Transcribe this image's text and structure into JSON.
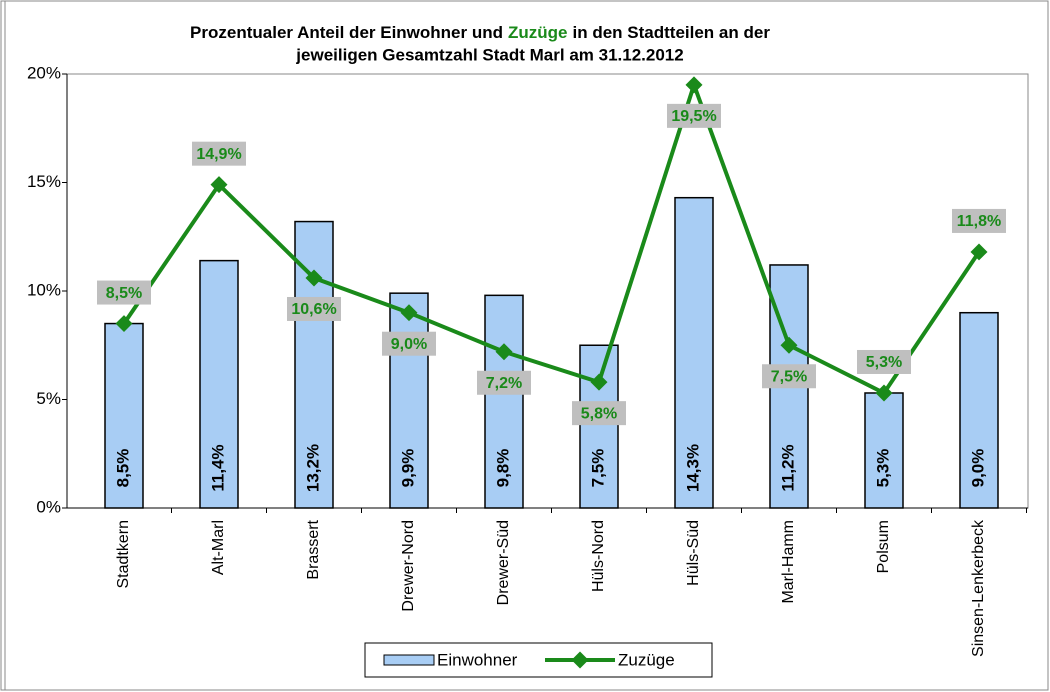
{
  "chart_data": {
    "type": "bar_line",
    "title": [
      "Prozentualer Anteil der Einwohner und",
      "Zuzüge",
      "in den Stadtteilen an der"
    ],
    "title_line2": "jeweiligen Gesamtzahl Stadt Marl am 31.12.2012",
    "categories": [
      "Stadtkern",
      "Alt-Marl",
      "Brassert",
      "Drewer-Nord",
      "Drewer-Süd",
      "Hüls-Nord",
      "Hüls-Süd",
      "Marl-Hamm",
      "Polsum",
      "Sinsen-Lenkerbeck"
    ],
    "series": [
      {
        "name": "Einwohner",
        "type": "bar",
        "color": "#a8cdf4",
        "values": [
          8.5,
          11.4,
          13.2,
          9.9,
          9.8,
          7.5,
          14.3,
          11.2,
          5.3,
          9.0
        ],
        "value_labels": [
          "8,5%",
          "11,4%",
          "13,2%",
          "9,9%",
          "9,8%",
          "7,5%",
          "14,3%",
          "11,2%",
          "5,3%",
          "9,0%"
        ]
      },
      {
        "name": "Zuzüge",
        "type": "line",
        "color": "#1a8a1a",
        "values": [
          8.5,
          14.9,
          10.6,
          9.0,
          7.2,
          5.8,
          19.5,
          7.5,
          5.3,
          11.8
        ],
        "value_labels": [
          "8,5%",
          "14,9%",
          "10,6%",
          "9,0%",
          "7,2%",
          "5,8%",
          "19,5%",
          "7,5%",
          "5,3%",
          "11,8%"
        ]
      }
    ],
    "ylim": [
      0,
      20
    ],
    "yticks": [
      {
        "value": 0,
        "label": "0%"
      },
      {
        "value": 5,
        "label": "5%"
      },
      {
        "value": 10,
        "label": "10%"
      },
      {
        "value": 15,
        "label": "15%"
      },
      {
        "value": 20,
        "label": "20%"
      }
    ],
    "grid": false,
    "legend": "bottom"
  }
}
